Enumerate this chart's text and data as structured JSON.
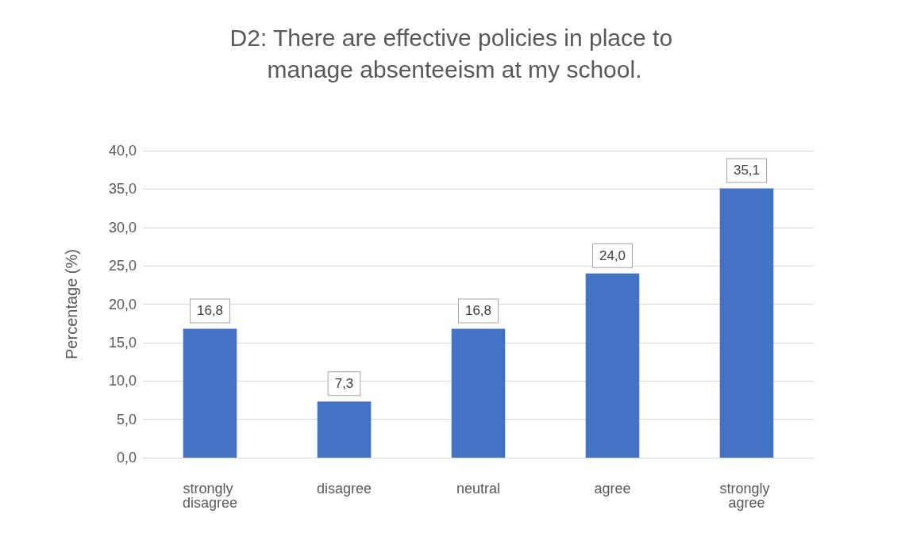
{
  "chart_data": {
    "type": "bar",
    "title": "D2: There are effective policies in place to manage absenteeism at my school.",
    "ylabel": "Percentage (%)",
    "categories": [
      "strongly disagree",
      "disagree",
      "neutral",
      "agree",
      "strongly agree"
    ],
    "values": [
      16.8,
      7.3,
      16.8,
      24.0,
      35.1
    ],
    "value_labels": [
      "16,8",
      "7,3",
      "16,8",
      "24,0",
      "35,1"
    ],
    "color": "#4472c4",
    "ylim": [
      0,
      40
    ],
    "yticks": [
      {
        "value": 0,
        "label": "0,0"
      },
      {
        "value": 5,
        "label": "5,0"
      },
      {
        "value": 10,
        "label": "10,0"
      },
      {
        "value": 15,
        "label": "15,0"
      },
      {
        "value": 20,
        "label": "20,0"
      },
      {
        "value": 25,
        "label": "25,0"
      },
      {
        "value": 30,
        "label": "30,0"
      },
      {
        "value": 35,
        "label": "35,0"
      },
      {
        "value": 40,
        "label": "40,0"
      }
    ],
    "grid": true
  }
}
